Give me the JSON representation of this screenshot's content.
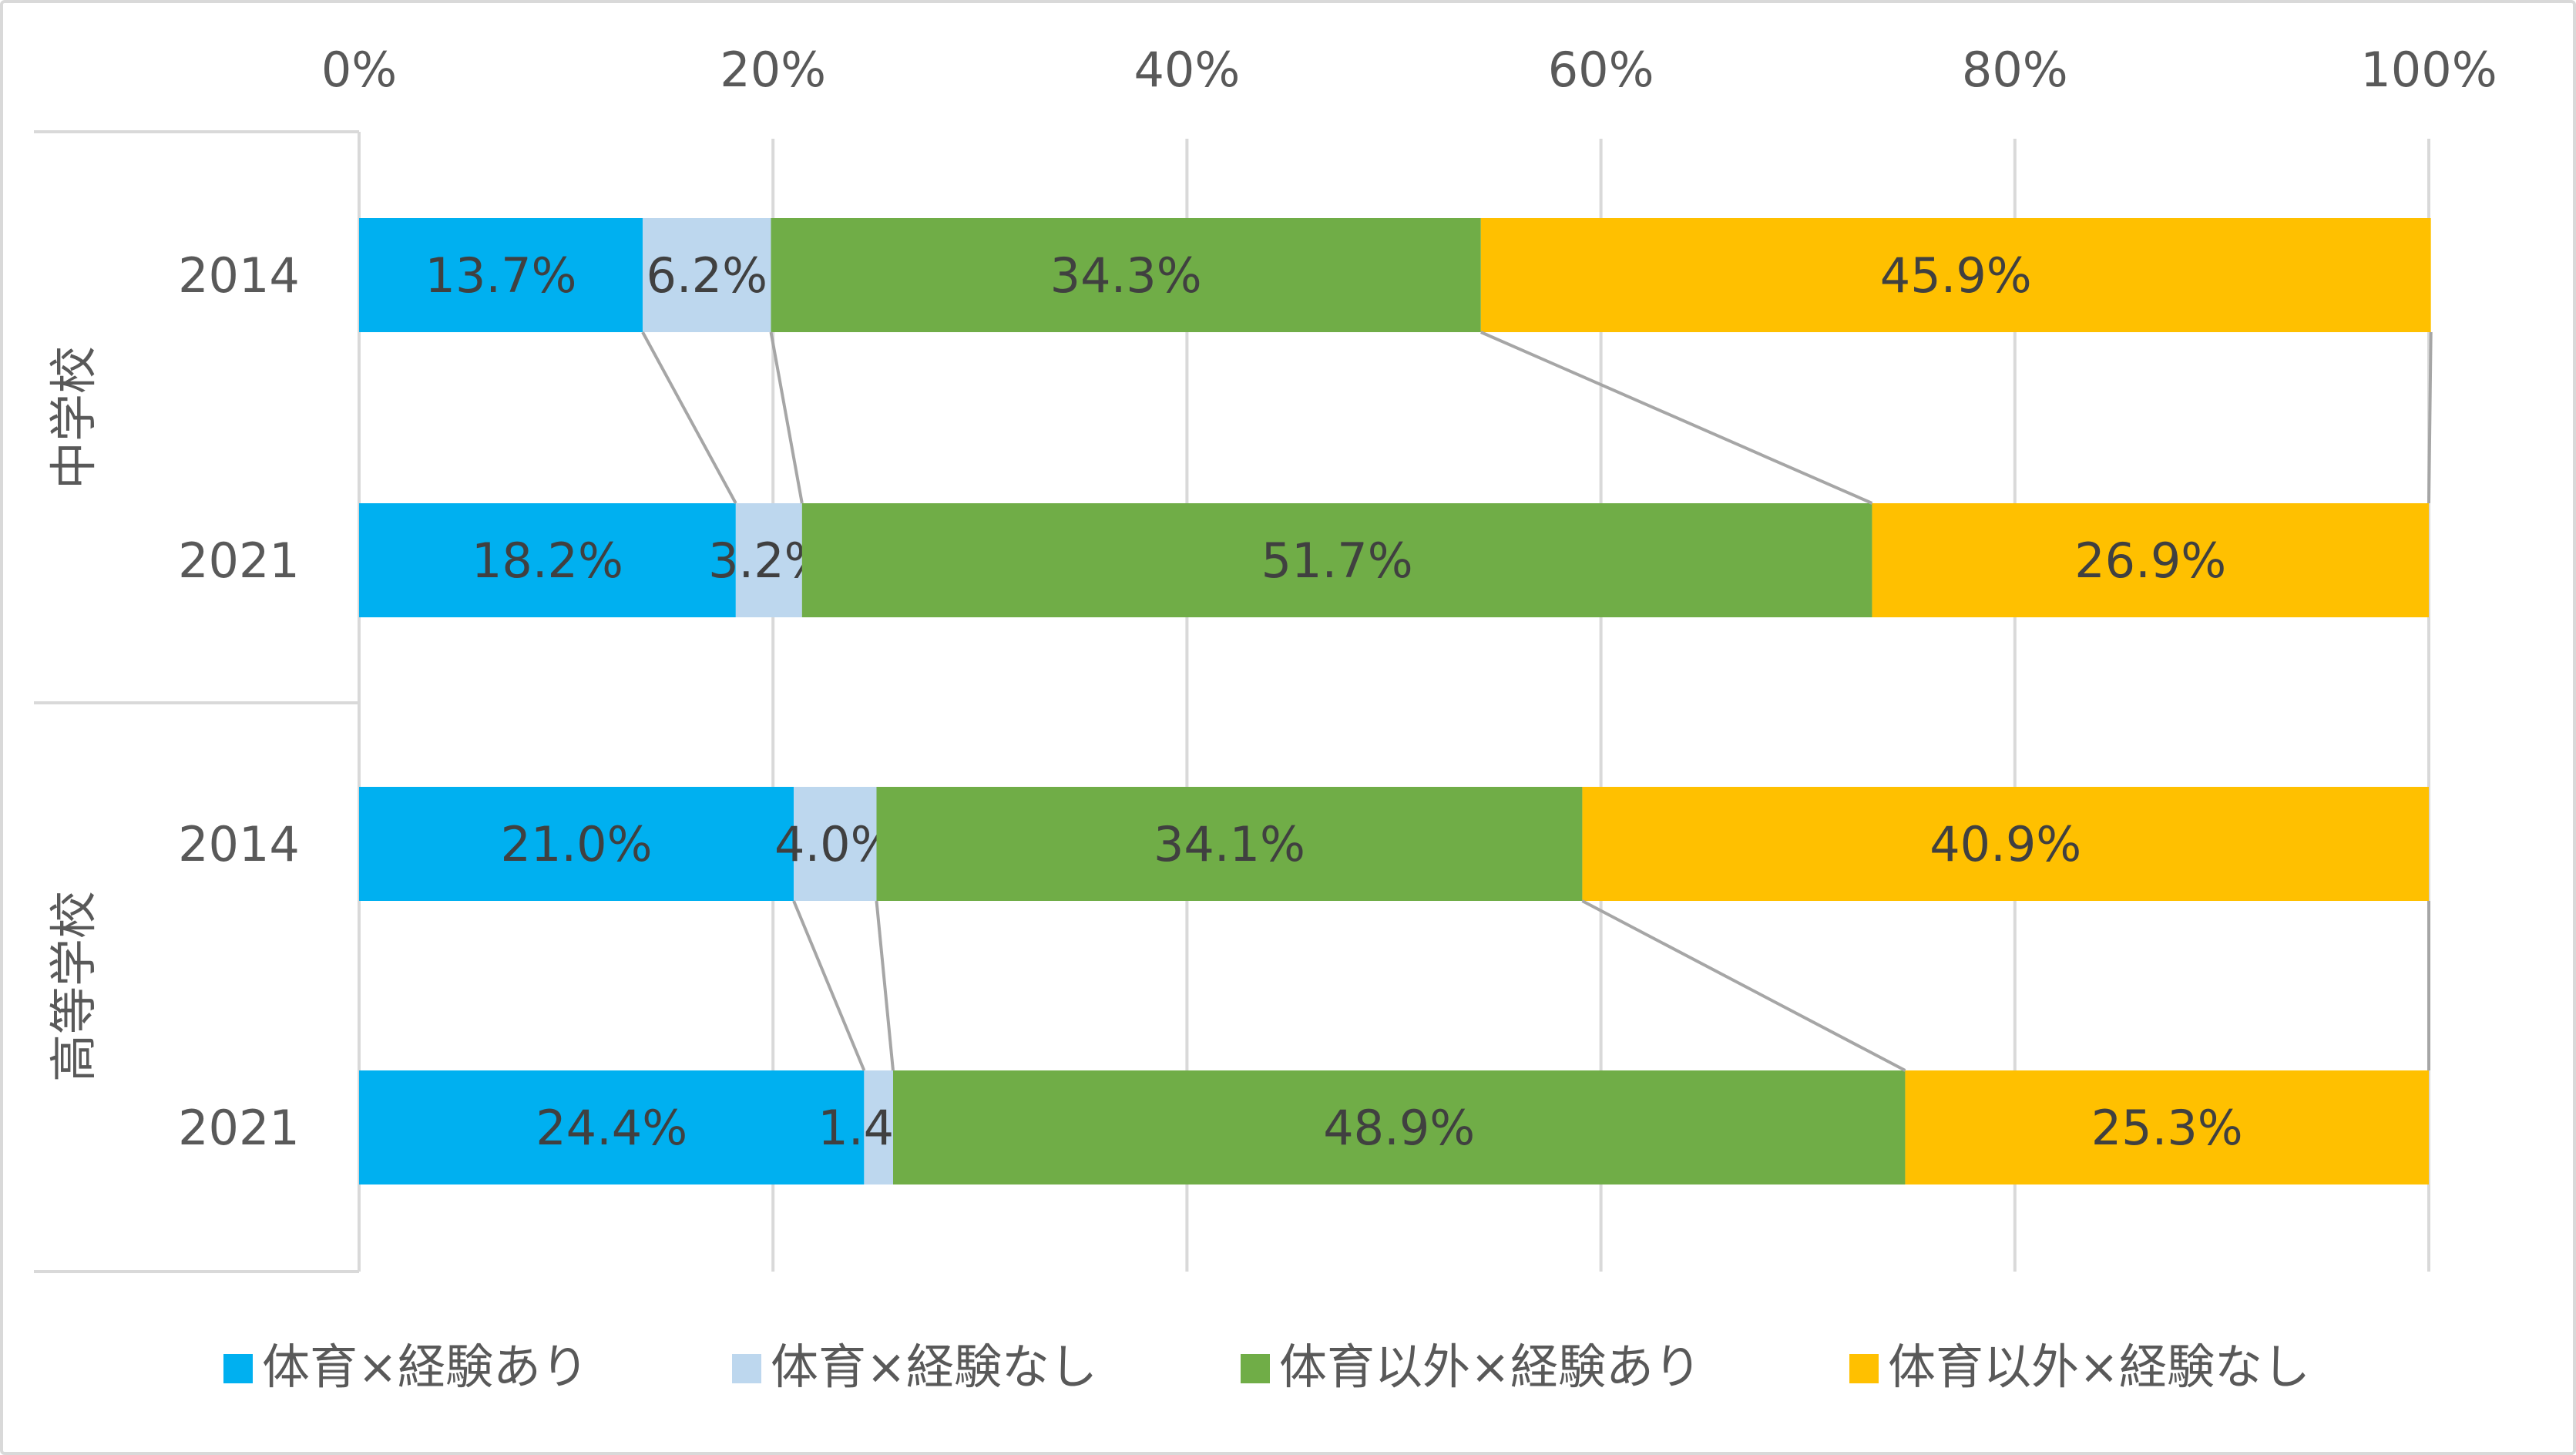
{
  "chart_data": {
    "type": "bar",
    "orientation": "horizontal",
    "stacked": "percent",
    "x_ticks": [
      "0%",
      "20%",
      "40%",
      "60%",
      "80%",
      "100%"
    ],
    "xlim": [
      0,
      100
    ],
    "grid": true,
    "legend_position": "bottom",
    "rows": [
      {
        "group": "中学校",
        "year": "2014",
        "values": [
          13.7,
          6.2,
          34.3,
          45.9
        ],
        "labels": [
          "13.7%",
          "6.2%",
          "34.3%",
          "45.9%"
        ]
      },
      {
        "group": "中学校",
        "year": "2021",
        "values": [
          18.2,
          3.2,
          51.7,
          26.9
        ],
        "labels": [
          "18.2%",
          "3.2%",
          "51.7%",
          "26.9%"
        ]
      },
      {
        "group": "高等学校",
        "year": "2014",
        "values": [
          21.0,
          4.0,
          34.1,
          40.9
        ],
        "labels": [
          "21.0%",
          "4.0%",
          "34.1%",
          "40.9%"
        ]
      },
      {
        "group": "高等学校",
        "year": "2021",
        "values": [
          24.4,
          1.4,
          48.9,
          25.3
        ],
        "labels": [
          "24.4%",
          "1.4%",
          "48.9%",
          "25.3%"
        ]
      }
    ],
    "groups": [
      "中学校",
      "高等学校"
    ],
    "series": [
      {
        "name": "体育×経験あり",
        "color": "#00b0f0"
      },
      {
        "name": "体育×経験なし",
        "color": "#bdd7ee"
      },
      {
        "name": "体育以外×経験あり",
        "color": "#70ad47"
      },
      {
        "name": "体育以外×経験なし",
        "color": "#ffc000"
      }
    ],
    "series_lines": true
  }
}
